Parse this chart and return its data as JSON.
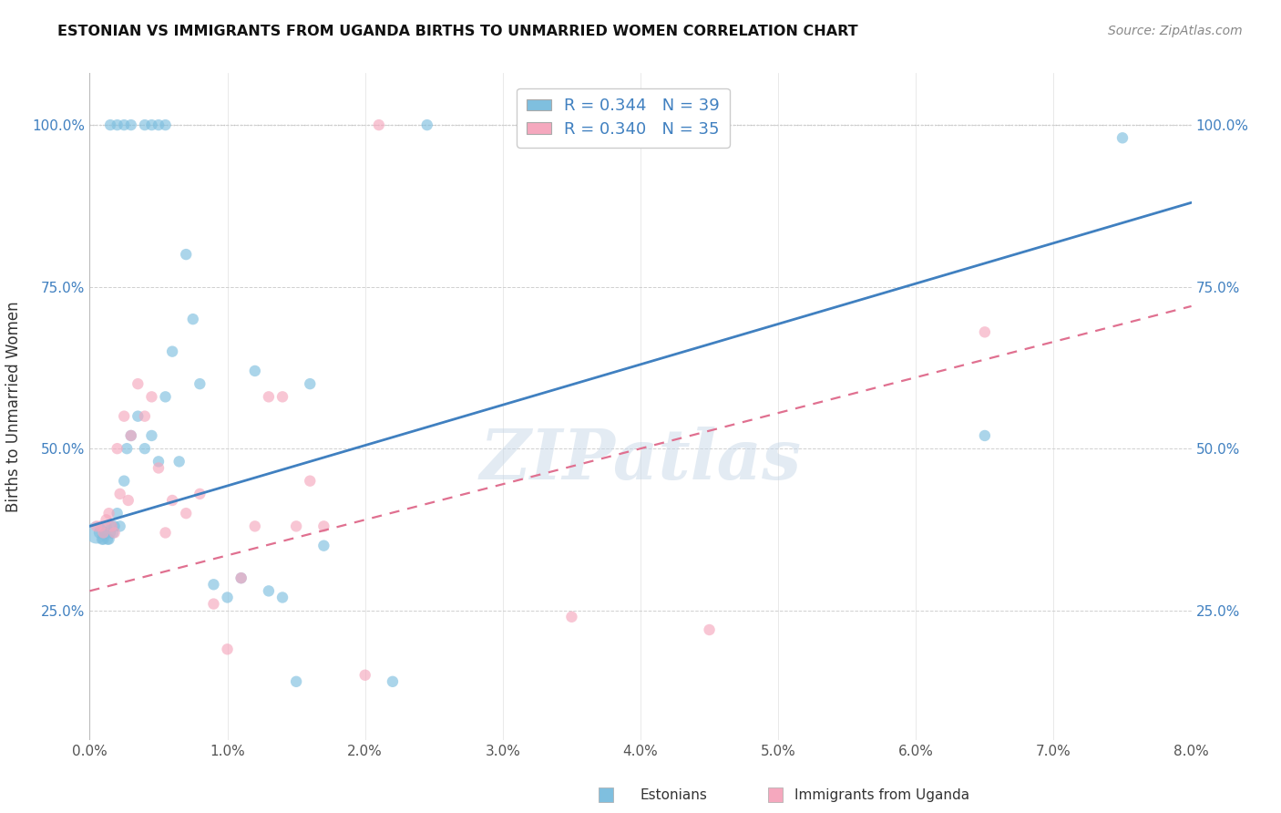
{
  "title": "ESTONIAN VS IMMIGRANTS FROM UGANDA BIRTHS TO UNMARRIED WOMEN CORRELATION CHART",
  "source": "Source: ZipAtlas.com",
  "ylabel": "Births to Unmarried Women",
  "y_tick_labels": [
    "25.0%",
    "50.0%",
    "75.0%",
    "100.0%"
  ],
  "x_tick_labels": [
    "0.0%",
    "1.0%",
    "2.0%",
    "3.0%",
    "4.0%",
    "5.0%",
    "6.0%",
    "7.0%",
    "8.0%"
  ],
  "xlim": [
    0.0,
    8.0
  ],
  "ylim": [
    0.05,
    1.08
  ],
  "blue_color": "#7fbfdf",
  "pink_color": "#f5a8be",
  "blue_line_color": "#4080c0",
  "pink_line_color": "#e07090",
  "legend_r_blue": "R = 0.344",
  "legend_n_blue": "N = 39",
  "legend_r_pink": "R = 0.340",
  "legend_n_pink": "N = 35",
  "watermark": "ZIPatlas",
  "blue_x": [
    0.05,
    0.07,
    0.09,
    0.1,
    0.11,
    0.12,
    0.13,
    0.14,
    0.15,
    0.16,
    0.17,
    0.18,
    0.2,
    0.22,
    0.25,
    0.27,
    0.3,
    0.35,
    0.4,
    0.45,
    0.5,
    0.55,
    0.6,
    0.65,
    0.7,
    0.75,
    0.8,
    0.9,
    1.0,
    1.1,
    1.2,
    1.3,
    1.4,
    1.5,
    1.6,
    1.7,
    2.2,
    6.5,
    7.5
  ],
  "blue_y": [
    0.37,
    0.37,
    0.36,
    0.36,
    0.37,
    0.38,
    0.36,
    0.36,
    0.37,
    0.38,
    0.37,
    0.38,
    0.4,
    0.38,
    0.45,
    0.5,
    0.52,
    0.55,
    0.5,
    0.52,
    0.48,
    0.58,
    0.65,
    0.48,
    0.8,
    0.7,
    0.6,
    0.29,
    0.27,
    0.3,
    0.62,
    0.28,
    0.27,
    0.14,
    0.6,
    0.35,
    0.14,
    0.52,
    0.98
  ],
  "blue_sizes": [
    300,
    80,
    80,
    80,
    80,
    80,
    80,
    80,
    80,
    80,
    80,
    80,
    80,
    80,
    80,
    80,
    80,
    80,
    80,
    80,
    80,
    80,
    80,
    80,
    80,
    80,
    80,
    80,
    80,
    80,
    80,
    80,
    80,
    80,
    80,
    80,
    80,
    80,
    80
  ],
  "blue_top_x": [
    0.15,
    0.2,
    0.25,
    0.3,
    0.4,
    0.45,
    0.5,
    0.55,
    2.45
  ],
  "blue_top_sizes": [
    80,
    80,
    80,
    80,
    80,
    80,
    80,
    80,
    80
  ],
  "pink_x": [
    0.05,
    0.08,
    0.1,
    0.12,
    0.14,
    0.16,
    0.18,
    0.2,
    0.22,
    0.25,
    0.28,
    0.3,
    0.35,
    0.4,
    0.45,
    0.5,
    0.55,
    0.6,
    0.7,
    0.8,
    0.9,
    1.0,
    1.1,
    1.2,
    1.3,
    1.4,
    1.5,
    1.6,
    1.7,
    2.0,
    3.5,
    4.5,
    6.5
  ],
  "pink_y": [
    0.38,
    0.38,
    0.37,
    0.39,
    0.4,
    0.38,
    0.37,
    0.5,
    0.43,
    0.55,
    0.42,
    0.52,
    0.6,
    0.55,
    0.58,
    0.47,
    0.37,
    0.42,
    0.4,
    0.43,
    0.26,
    0.19,
    0.3,
    0.38,
    0.58,
    0.58,
    0.38,
    0.45,
    0.38,
    0.15,
    0.24,
    0.22,
    0.68
  ],
  "pink_top_x": [
    2.1
  ],
  "pink_sizes": [
    80,
    80,
    80,
    80,
    80,
    80,
    80,
    80,
    80,
    80,
    80,
    80,
    80,
    80,
    80,
    80,
    80,
    80,
    80,
    80,
    80,
    80,
    80,
    80,
    80,
    80,
    80,
    80,
    80,
    80,
    80,
    80,
    80
  ],
  "blue_line_y_start": 0.38,
  "blue_line_y_end": 0.88,
  "pink_line_y_start": 0.28,
  "pink_line_y_end": 0.72,
  "footer_label_estonians": "Estonians",
  "footer_label_immigrants": "Immigrants from Uganda"
}
